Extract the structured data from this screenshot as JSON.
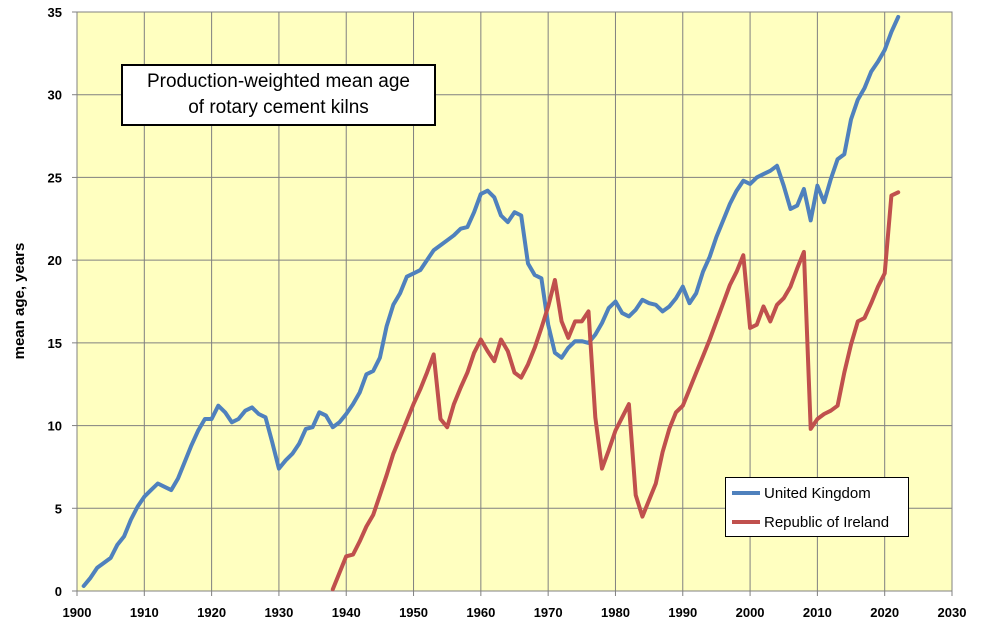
{
  "chart_data": {
    "type": "line",
    "title_lines": [
      "Production-weighted mean age",
      "of rotary cement kilns"
    ],
    "xlabel": "",
    "ylabel": "mean age, years",
    "xlim": [
      1900,
      2030
    ],
    "ylim": [
      0,
      35
    ],
    "xticks": [
      1900,
      1910,
      1920,
      1930,
      1940,
      1950,
      1960,
      1970,
      1980,
      1990,
      2000,
      2010,
      2020,
      2030
    ],
    "yticks": [
      0,
      5,
      10,
      15,
      20,
      25,
      30,
      35
    ],
    "grid": true,
    "legend_position": "bottom-right",
    "plot_background": "#FFFFC0",
    "series": [
      {
        "name": "United Kingdom",
        "color": "#4F81BD",
        "points": [
          [
            1901,
            0.3
          ],
          [
            1902,
            0.8
          ],
          [
            1903,
            1.4
          ],
          [
            1904,
            1.7
          ],
          [
            1905,
            2.0
          ],
          [
            1906,
            2.8
          ],
          [
            1907,
            3.3
          ],
          [
            1908,
            4.3
          ],
          [
            1909,
            5.1
          ],
          [
            1910,
            5.7
          ],
          [
            1911,
            6.1
          ],
          [
            1912,
            6.5
          ],
          [
            1913,
            6.3
          ],
          [
            1914,
            6.1
          ],
          [
            1915,
            6.8
          ],
          [
            1916,
            7.8
          ],
          [
            1917,
            8.8
          ],
          [
            1918,
            9.7
          ],
          [
            1919,
            10.4
          ],
          [
            1920,
            10.4
          ],
          [
            1921,
            11.2
          ],
          [
            1922,
            10.8
          ],
          [
            1923,
            10.2
          ],
          [
            1924,
            10.4
          ],
          [
            1925,
            10.9
          ],
          [
            1926,
            11.1
          ],
          [
            1927,
            10.7
          ],
          [
            1928,
            10.5
          ],
          [
            1929,
            9.0
          ],
          [
            1930,
            7.4
          ],
          [
            1931,
            7.9
          ],
          [
            1932,
            8.3
          ],
          [
            1933,
            8.9
          ],
          [
            1934,
            9.8
          ],
          [
            1935,
            9.9
          ],
          [
            1936,
            10.8
          ],
          [
            1937,
            10.6
          ],
          [
            1938,
            9.9
          ],
          [
            1939,
            10.2
          ],
          [
            1940,
            10.7
          ],
          [
            1941,
            11.3
          ],
          [
            1942,
            12.0
          ],
          [
            1943,
            13.1
          ],
          [
            1944,
            13.3
          ],
          [
            1945,
            14.1
          ],
          [
            1946,
            16.0
          ],
          [
            1947,
            17.3
          ],
          [
            1948,
            18.0
          ],
          [
            1949,
            19.0
          ],
          [
            1950,
            19.2
          ],
          [
            1951,
            19.4
          ],
          [
            1952,
            20.0
          ],
          [
            1953,
            20.6
          ],
          [
            1954,
            20.9
          ],
          [
            1955,
            21.2
          ],
          [
            1956,
            21.5
          ],
          [
            1957,
            21.9
          ],
          [
            1958,
            22.0
          ],
          [
            1959,
            22.9
          ],
          [
            1960,
            24.0
          ],
          [
            1961,
            24.2
          ],
          [
            1962,
            23.8
          ],
          [
            1963,
            22.7
          ],
          [
            1964,
            22.3
          ],
          [
            1965,
            22.9
          ],
          [
            1966,
            22.7
          ],
          [
            1967,
            19.8
          ],
          [
            1968,
            19.1
          ],
          [
            1969,
            18.9
          ],
          [
            1970,
            16.1
          ],
          [
            1971,
            14.4
          ],
          [
            1972,
            14.1
          ],
          [
            1973,
            14.7
          ],
          [
            1974,
            15.1
          ],
          [
            1975,
            15.1
          ],
          [
            1976,
            15.0
          ],
          [
            1977,
            15.5
          ],
          [
            1978,
            16.2
          ],
          [
            1979,
            17.1
          ],
          [
            1980,
            17.5
          ],
          [
            1981,
            16.8
          ],
          [
            1982,
            16.6
          ],
          [
            1983,
            17.0
          ],
          [
            1984,
            17.6
          ],
          [
            1985,
            17.4
          ],
          [
            1986,
            17.3
          ],
          [
            1987,
            16.9
          ],
          [
            1988,
            17.2
          ],
          [
            1989,
            17.7
          ],
          [
            1990,
            18.4
          ],
          [
            1991,
            17.4
          ],
          [
            1992,
            18.0
          ],
          [
            1993,
            19.3
          ],
          [
            1994,
            20.2
          ],
          [
            1995,
            21.4
          ],
          [
            1996,
            22.4
          ],
          [
            1997,
            23.4
          ],
          [
            1998,
            24.2
          ],
          [
            1999,
            24.8
          ],
          [
            2000,
            24.6
          ],
          [
            2001,
            25.0
          ],
          [
            2002,
            25.2
          ],
          [
            2003,
            25.4
          ],
          [
            2004,
            25.7
          ],
          [
            2005,
            24.5
          ],
          [
            2006,
            23.1
          ],
          [
            2007,
            23.3
          ],
          [
            2008,
            24.3
          ],
          [
            2009,
            22.4
          ],
          [
            2010,
            24.5
          ],
          [
            2011,
            23.5
          ],
          [
            2012,
            24.9
          ],
          [
            2013,
            26.1
          ],
          [
            2014,
            26.4
          ],
          [
            2015,
            28.5
          ],
          [
            2016,
            29.7
          ],
          [
            2017,
            30.4
          ],
          [
            2018,
            31.4
          ],
          [
            2019,
            32.0
          ],
          [
            2020,
            32.7
          ],
          [
            2021,
            33.8
          ],
          [
            2022,
            34.7
          ]
        ]
      },
      {
        "name": "Republic of Ireland",
        "color": "#C0504D",
        "points": [
          [
            1938,
            0.1
          ],
          [
            1939,
            1.1
          ],
          [
            1940,
            2.1
          ],
          [
            1941,
            2.2
          ],
          [
            1942,
            3.0
          ],
          [
            1943,
            3.9
          ],
          [
            1944,
            4.6
          ],
          [
            1945,
            5.8
          ],
          [
            1946,
            7.0
          ],
          [
            1947,
            8.3
          ],
          [
            1948,
            9.3
          ],
          [
            1949,
            10.3
          ],
          [
            1950,
            11.3
          ],
          [
            1951,
            12.2
          ],
          [
            1952,
            13.2
          ],
          [
            1953,
            14.3
          ],
          [
            1954,
            10.4
          ],
          [
            1955,
            9.9
          ],
          [
            1956,
            11.3
          ],
          [
            1957,
            12.3
          ],
          [
            1958,
            13.2
          ],
          [
            1959,
            14.4
          ],
          [
            1960,
            15.2
          ],
          [
            1961,
            14.5
          ],
          [
            1962,
            13.9
          ],
          [
            1963,
            15.2
          ],
          [
            1964,
            14.5
          ],
          [
            1965,
            13.2
          ],
          [
            1966,
            12.9
          ],
          [
            1967,
            13.7
          ],
          [
            1968,
            14.7
          ],
          [
            1969,
            15.9
          ],
          [
            1970,
            17.2
          ],
          [
            1971,
            18.8
          ],
          [
            1972,
            16.3
          ],
          [
            1973,
            15.3
          ],
          [
            1974,
            16.3
          ],
          [
            1975,
            16.3
          ],
          [
            1976,
            16.9
          ],
          [
            1977,
            10.5
          ],
          [
            1978,
            7.4
          ],
          [
            1979,
            8.5
          ],
          [
            1980,
            9.7
          ],
          [
            1981,
            10.5
          ],
          [
            1982,
            11.3
          ],
          [
            1983,
            5.8
          ],
          [
            1984,
            4.5
          ],
          [
            1985,
            5.5
          ],
          [
            1986,
            6.5
          ],
          [
            1987,
            8.4
          ],
          [
            1988,
            9.8
          ],
          [
            1989,
            10.8
          ],
          [
            1990,
            11.2
          ],
          [
            1991,
            12.2
          ],
          [
            1992,
            13.2
          ],
          [
            1993,
            14.2
          ],
          [
            1994,
            15.2
          ],
          [
            1995,
            16.3
          ],
          [
            1996,
            17.4
          ],
          [
            1997,
            18.5
          ],
          [
            1998,
            19.3
          ],
          [
            1999,
            20.3
          ],
          [
            2000,
            15.9
          ],
          [
            2001,
            16.1
          ],
          [
            2002,
            17.2
          ],
          [
            2003,
            16.3
          ],
          [
            2004,
            17.3
          ],
          [
            2005,
            17.7
          ],
          [
            2006,
            18.4
          ],
          [
            2007,
            19.5
          ],
          [
            2008,
            20.5
          ],
          [
            2009,
            9.8
          ],
          [
            2010,
            10.4
          ],
          [
            2011,
            10.7
          ],
          [
            2012,
            10.9
          ],
          [
            2013,
            11.2
          ],
          [
            2014,
            13.2
          ],
          [
            2015,
            14.9
          ],
          [
            2016,
            16.3
          ],
          [
            2017,
            16.5
          ],
          [
            2018,
            17.4
          ],
          [
            2019,
            18.4
          ],
          [
            2020,
            19.2
          ],
          [
            2021,
            23.9
          ],
          [
            2022,
            24.1
          ]
        ]
      }
    ]
  }
}
